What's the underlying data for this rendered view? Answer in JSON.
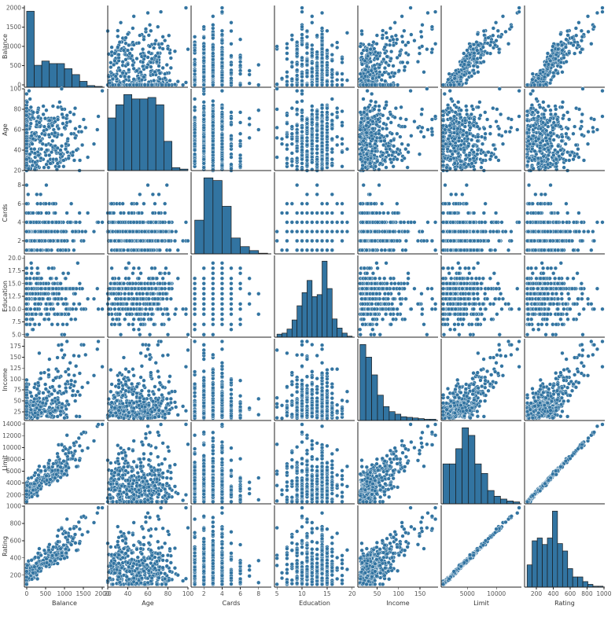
{
  "chart_data": {
    "type": "scatter",
    "kind": "pairplot",
    "diagonal": "histogram",
    "colors": {
      "marker": "#3274A1",
      "marker_edge": "#ffffff",
      "bar": "#3274A1",
      "bar_edge": "#1a1a1a"
    },
    "grid": false,
    "variables": [
      {
        "name": "Balance",
        "label": "Balance",
        "lim": [
          -60,
          2060
        ],
        "ticks": [
          0,
          500,
          1000,
          1500,
          2000
        ],
        "tick_labels": [
          "0",
          "500",
          "1000",
          "1500",
          "2000"
        ]
      },
      {
        "name": "Age",
        "label": "Age",
        "lim": [
          20,
          100
        ],
        "ticks": [
          20,
          40,
          60,
          80,
          100
        ],
        "tick_labels": [
          "20",
          "40",
          "60",
          "80",
          "100"
        ]
      },
      {
        "name": "Cards",
        "label": "Cards",
        "lim": [
          0.6,
          9.4
        ],
        "ticks": [
          2,
          4,
          6,
          8
        ],
        "tick_labels": [
          "2",
          "4",
          "6",
          "8"
        ]
      },
      {
        "name": "Education",
        "label": "Education",
        "lim": [
          4.5,
          20.5
        ],
        "ticks": [
          5,
          10,
          15,
          20
        ],
        "tick_labels": [
          "5",
          "10",
          "15",
          "20"
        ],
        "y_ticks": [
          5,
          7.5,
          10,
          12.5,
          15,
          17.5,
          20
        ],
        "y_tick_labels": [
          "5.0",
          "7.5",
          "10.0",
          "12.5",
          "15.0",
          "17.5",
          "20.0"
        ]
      },
      {
        "name": "Income",
        "label": "Income",
        "lim": [
          5,
          192
        ],
        "ticks": [
          50,
          100,
          150
        ],
        "tick_labels": [
          "50",
          "100",
          "150"
        ],
        "y_ticks": [
          25,
          50,
          75,
          100,
          125,
          150,
          175
        ],
        "y_tick_labels": [
          "25",
          "50",
          "75",
          "100",
          "125",
          "150",
          "175"
        ]
      },
      {
        "name": "Limit",
        "label": "Limit",
        "lim": [
          500,
          14300
        ],
        "ticks": [
          5000,
          10000
        ],
        "tick_labels": [
          "5000",
          "10000"
        ],
        "y_ticks": [
          2000,
          4000,
          6000,
          8000,
          10000,
          12000,
          14000
        ],
        "y_tick_labels": [
          "2000",
          "4000",
          "6000",
          "8000",
          "10000",
          "12000",
          "14000"
        ]
      },
      {
        "name": "Rating",
        "label": "Rating",
        "lim": [
          60,
          1010
        ],
        "ticks": [
          200,
          400,
          600,
          800,
          1000
        ],
        "tick_labels": [
          "200",
          "400",
          "600",
          "800",
          "1000"
        ]
      }
    ],
    "histograms": {
      "Balance": {
        "range": [
          0,
          2000
        ],
        "counts": [
          90,
          26,
          31,
          28,
          28,
          22,
          15,
          7,
          2,
          1
        ]
      },
      "Age": {
        "range": [
          20,
          100
        ],
        "counts": [
          36,
          45,
          52,
          49,
          49,
          50,
          45,
          20,
          2,
          1
        ]
      },
      "Cards": {
        "range": [
          1,
          9
        ],
        "counts": [
          51,
          115,
          111,
          72,
          24,
          11,
          5,
          1
        ]
      },
      "Education": {
        "range": [
          5,
          20
        ],
        "counts": [
          3,
          4,
          8,
          17,
          31,
          44,
          56,
          40,
          42,
          75,
          48,
          18,
          9,
          4,
          1
        ]
      },
      "Income": {
        "range": [
          10,
          187
        ],
        "counts": [
          120,
          100,
          72,
          40,
          22,
          14,
          10,
          6,
          5,
          4,
          3,
          2,
          2
        ]
      },
      "Limit": {
        "range": [
          800,
          14000
        ],
        "counts": [
          42,
          42,
          58,
          80,
          72,
          42,
          32,
          14,
          8,
          5,
          3,
          2
        ]
      },
      "Rating": {
        "range": [
          90,
          990
        ],
        "counts": [
          24,
          50,
          53,
          46,
          53,
          82,
          47,
          39,
          20,
          11,
          11,
          6,
          3,
          1,
          1
        ]
      }
    },
    "sample_records": {
      "columns": [
        "Balance",
        "Age",
        "Cards",
        "Education",
        "Income",
        "Limit",
        "Rating"
      ],
      "rows": [
        [
          333,
          34,
          2,
          11,
          14.9,
          3606,
          283
        ],
        [
          903,
          82,
          3,
          15,
          106.0,
          6645,
          483
        ],
        [
          580,
          71,
          4,
          11,
          104.6,
          7075,
          514
        ],
        [
          964,
          36,
          3,
          11,
          148.9,
          9504,
          681
        ],
        [
          331,
          68,
          2,
          16,
          55.9,
          4897,
          357
        ],
        [
          1151,
          77,
          4,
          10,
          80.2,
          8047,
          569
        ],
        [
          203,
          37,
          2,
          12,
          21.0,
          3388,
          259
        ],
        [
          872,
          87,
          2,
          9,
          71.4,
          7114,
          512
        ],
        [
          279,
          66,
          5,
          13,
          15.1,
          3300,
          266
        ],
        [
          1350,
          41,
          3,
          19,
          71.1,
          6819,
          491
        ],
        [
          1407,
          30,
          4,
          14,
          63.1,
          8117,
          589
        ],
        [
          0,
          64,
          4,
          16,
          15.0,
          1311,
          138
        ],
        [
          204,
          57,
          1,
          7,
          80.6,
          5308,
          394
        ],
        [
          1081,
          49,
          1,
          9,
          43.7,
          6922,
          511
        ],
        [
          148,
          75,
          3,
          13,
          19.1,
          3291,
          269
        ],
        [
          0,
          57,
          3,
          15,
          19.4,
          2525,
          200
        ],
        [
          0,
          73,
          3,
          17,
          26.6,
          3714,
          286
        ],
        [
          368,
          69,
          1,
          16,
          20.9,
          4378,
          339
        ],
        [
          891,
          28,
          2,
          9,
          37.8,
          6384,
          448
        ],
        [
          1048,
          44,
          2,
          9,
          70.3,
          6626,
          479
        ],
        [
          89,
          63,
          2,
          16,
          29.0,
          2880,
          238
        ],
        [
          968,
          72,
          4,
          17,
          22.4,
          5353,
          402
        ],
        [
          0,
          50,
          3,
          16,
          11.0,
          1209,
          114
        ],
        [
          411,
          51,
          1,
          12,
          38.1,
          4566,
          345
        ],
        [
          0,
          51,
          3,
          14,
          11.9,
          1688,
          143
        ],
        [
          0,
          33,
          2,
          11,
          15.8,
          1925,
          155
        ],
        [
          130,
          53,
          3,
          17,
          26.4,
          3160,
          258
        ],
        [
          1018,
          61,
          1,
          16,
          38.1,
          7063,
          500
        ],
        [
          1779,
          46,
          3,
          12,
          107.9,
          11120,
          810
        ],
        [
          1259,
          30,
          3,
          14,
          108.2,
          10366,
          763
        ],
        [
          1999,
          98,
          4,
          10,
          128.0,
          13913,
          982
        ],
        [
          815,
          64,
          4,
          15,
          50.6,
          6520,
          473
        ],
        [
          1100,
          45,
          4,
          17,
          122.4,
          9611,
          685
        ],
        [
          460,
          23,
          6,
          15,
          29.6,
          4322,
          329
        ],
        [
          0,
          88,
          3,
          10,
          35.7,
          2416,
          213
        ],
        [
          120,
          41,
          4,
          19,
          48.8,
          3440,
          266
        ],
        [
          1380,
          58,
          3,
          11,
          152.3,
          11589,
          815
        ],
        [
          657,
          27,
          1,
          16,
          43.5,
          5758,
          420
        ],
        [
          520,
          79,
          8,
          9,
          54.6,
          4876,
          368
        ],
        [
          0,
          39,
          2,
          18,
          12.7,
          1622,
          140
        ]
      ]
    }
  }
}
